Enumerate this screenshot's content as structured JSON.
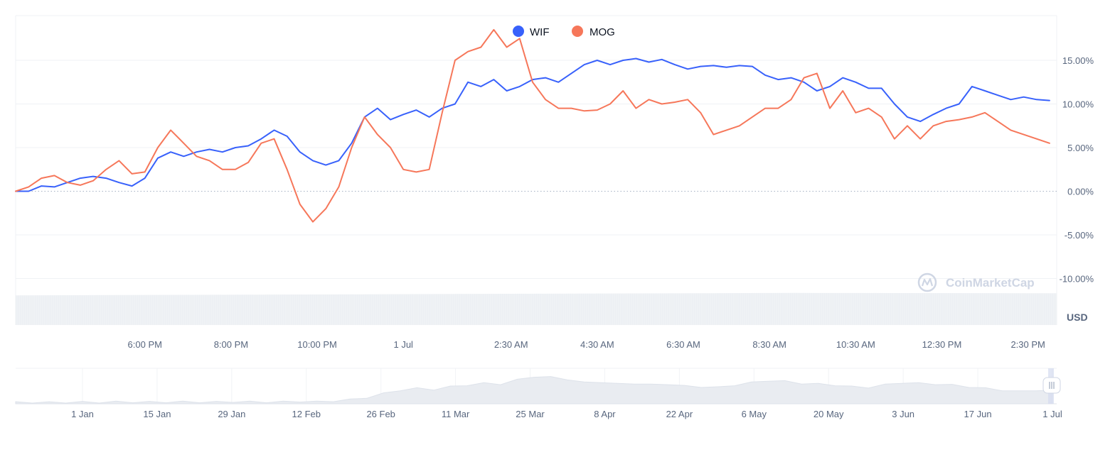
{
  "chart_data": {
    "type": "line",
    "y_unit": "%",
    "ylim": [
      -10,
      20
    ],
    "y_ticks": [
      "15.00%",
      "10.00%",
      "5.00%",
      "0.00%",
      "-5.00%",
      "-10.00%"
    ],
    "y_tick_values": [
      15,
      10,
      5,
      0,
      -5,
      -10
    ],
    "x_ticks": [
      "6:00 PM",
      "8:00 PM",
      "10:00 PM",
      "1 Jul",
      "2:30 AM",
      "4:30 AM",
      "6:30 AM",
      "8:30 AM",
      "10:30 AM",
      "12:30 PM",
      "2:30 PM"
    ],
    "x_tick_hours": [
      3.0,
      5.0,
      7.0,
      9.0,
      11.5,
      13.5,
      15.5,
      17.5,
      19.5,
      21.5,
      23.5
    ],
    "x_range_hours": [
      0,
      24.1
    ],
    "currency": "USD",
    "watermark": "CoinMarketCap",
    "series": [
      {
        "name": "WIF",
        "color": "#3861fb",
        "x_hours": [
          0.0,
          0.3,
          0.6,
          0.9,
          1.2,
          1.5,
          1.8,
          2.1,
          2.4,
          2.7,
          3.0,
          3.3,
          3.6,
          3.9,
          4.2,
          4.5,
          4.8,
          5.1,
          5.4,
          5.7,
          6.0,
          6.3,
          6.6,
          6.9,
          7.2,
          7.5,
          7.8,
          8.1,
          8.4,
          8.7,
          9.0,
          9.3,
          9.6,
          9.9,
          10.2,
          10.5,
          10.8,
          11.1,
          11.4,
          11.7,
          12.0,
          12.3,
          12.6,
          12.9,
          13.2,
          13.5,
          13.8,
          14.1,
          14.4,
          14.7,
          15.0,
          15.3,
          15.6,
          15.9,
          16.2,
          16.5,
          16.8,
          17.1,
          17.4,
          17.7,
          18.0,
          18.3,
          18.6,
          18.9,
          19.2,
          19.5,
          19.8,
          20.1,
          20.4,
          20.7,
          21.0,
          21.3,
          21.6,
          21.9,
          22.2,
          22.5,
          22.8,
          23.1,
          23.4,
          23.7,
          24.0
        ],
        "values": [
          0.0,
          0.0,
          0.6,
          0.5,
          1.0,
          1.5,
          1.7,
          1.5,
          1.0,
          0.6,
          1.5,
          3.8,
          4.5,
          4.0,
          4.5,
          4.8,
          4.5,
          5.0,
          5.2,
          6.0,
          7.0,
          6.3,
          4.5,
          3.5,
          3.0,
          3.5,
          5.5,
          8.5,
          9.5,
          8.2,
          8.8,
          9.3,
          8.5,
          9.5,
          10.0,
          12.5,
          12.0,
          12.8,
          11.5,
          12.0,
          12.8,
          13.0,
          12.5,
          13.5,
          14.5,
          15.0,
          14.5,
          15.0,
          15.2,
          14.8,
          15.1,
          14.5,
          14.0,
          14.3,
          14.4,
          14.2,
          14.4,
          14.3,
          13.3,
          12.8,
          13.0,
          12.5,
          11.5,
          12.0,
          13.0,
          12.5,
          11.8,
          11.8,
          10.0,
          8.5,
          8.0,
          8.8,
          9.5,
          10.0,
          12.0,
          11.5,
          11.0,
          10.5,
          10.8,
          10.5,
          10.4
        ]
      },
      {
        "name": "MOG",
        "color": "#f6775a",
        "x_hours": [
          0.0,
          0.3,
          0.6,
          0.9,
          1.2,
          1.5,
          1.8,
          2.1,
          2.4,
          2.7,
          3.0,
          3.3,
          3.6,
          3.9,
          4.2,
          4.5,
          4.8,
          5.1,
          5.4,
          5.7,
          6.0,
          6.3,
          6.6,
          6.9,
          7.2,
          7.5,
          7.8,
          8.1,
          8.4,
          8.7,
          9.0,
          9.3,
          9.6,
          9.9,
          10.2,
          10.5,
          10.8,
          11.1,
          11.4,
          11.7,
          12.0,
          12.3,
          12.6,
          12.9,
          13.2,
          13.5,
          13.8,
          14.1,
          14.4,
          14.7,
          15.0,
          15.3,
          15.6,
          15.9,
          16.2,
          16.5,
          16.8,
          17.1,
          17.4,
          17.7,
          18.0,
          18.3,
          18.6,
          18.9,
          19.2,
          19.5,
          19.8,
          20.1,
          20.4,
          20.7,
          21.0,
          21.3,
          21.6,
          21.9,
          22.2,
          22.5,
          22.8,
          23.1,
          23.4,
          23.7,
          24.0
        ],
        "values": [
          0.0,
          0.5,
          1.5,
          1.8,
          1.0,
          0.7,
          1.2,
          2.5,
          3.5,
          2.0,
          2.2,
          5.0,
          7.0,
          5.5,
          4.0,
          3.5,
          2.5,
          2.5,
          3.3,
          5.5,
          6.0,
          2.5,
          -1.5,
          -3.5,
          -2.0,
          0.5,
          5.0,
          8.5,
          6.5,
          5.0,
          2.5,
          2.2,
          2.5,
          9.0,
          15.0,
          16.0,
          16.5,
          18.5,
          16.5,
          17.5,
          12.5,
          10.5,
          9.5,
          9.5,
          9.2,
          9.3,
          10.0,
          11.5,
          9.5,
          10.5,
          10.0,
          10.2,
          10.5,
          9.0,
          6.5,
          7.0,
          7.5,
          8.5,
          9.5,
          9.5,
          10.5,
          13.0,
          13.5,
          9.5,
          11.5,
          9.0,
          9.5,
          8.5,
          6.0,
          7.5,
          6.0,
          7.5,
          8.0,
          8.2,
          8.5,
          9.0,
          8.0,
          7.0,
          6.5,
          6.0,
          5.5
        ]
      }
    ],
    "volume_level_fraction": [
      0.72,
      0.74,
      0.76,
      0.78,
      0.77
    ],
    "navigator_ticks": [
      "1 Jan",
      "15 Jan",
      "29 Jan",
      "12 Feb",
      "26 Feb",
      "11 Mar",
      "25 Mar",
      "8 Apr",
      "22 Apr",
      "6 May",
      "20 May",
      "3 Jun",
      "17 Jun",
      "1 Jul"
    ],
    "navigator_levels": [
      0.04,
      0.04,
      0.04,
      0.04,
      0.05,
      0.04,
      0.06,
      0.05,
      0.05,
      0.05,
      0.06,
      0.05,
      0.05,
      0.06,
      0.06,
      0.05,
      0.06,
      0.07,
      0.06,
      0.08,
      0.12,
      0.18,
      0.3,
      0.4,
      0.45,
      0.42,
      0.5,
      0.55,
      0.6,
      0.58,
      0.7,
      0.8,
      0.78,
      0.72,
      0.62,
      0.64,
      0.58,
      0.6,
      0.56,
      0.58,
      0.52,
      0.5,
      0.48,
      0.55,
      0.62,
      0.68,
      0.66,
      0.6,
      0.58,
      0.55,
      0.5,
      0.48,
      0.56,
      0.62,
      0.6,
      0.58,
      0.55,
      0.5,
      0.45,
      0.4,
      0.36,
      0.4,
      0.38
    ]
  }
}
